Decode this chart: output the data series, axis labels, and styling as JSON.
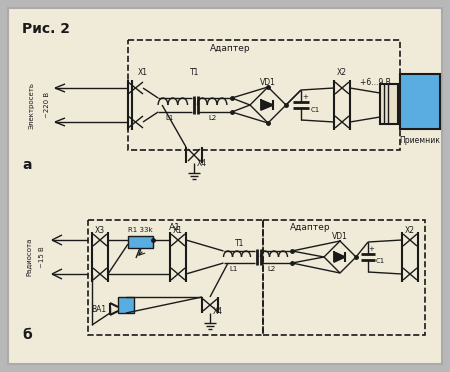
{
  "bg_color": "#f0ead8",
  "outer_bg": "#b8b8b8",
  "line_color": "#1a1a1a",
  "blue_color": "#5aade0",
  "title": "Рис. 2",
  "label_adapter": "Адаптер",
  "label_a1": "A1",
  "label_electro": "Электросеть",
  "label_electro2": "~220 В",
  "label_radio": "Радиосота",
  "label_radio2": "~15 В",
  "label_prim": "Приемник",
  "label_plus_v": "+6...9 В",
  "label_x1": "X1",
  "label_x2": "X2",
  "label_x3": "X3",
  "label_x4": "X4",
  "label_t1": "T1",
  "label_l1": "L1",
  "label_l2": "L2",
  "label_vd1": "VD1",
  "label_c1": "C1",
  "label_r1": "R1 33k",
  "label_ba1": "BA1",
  "label_a": "а",
  "label_b": "б"
}
